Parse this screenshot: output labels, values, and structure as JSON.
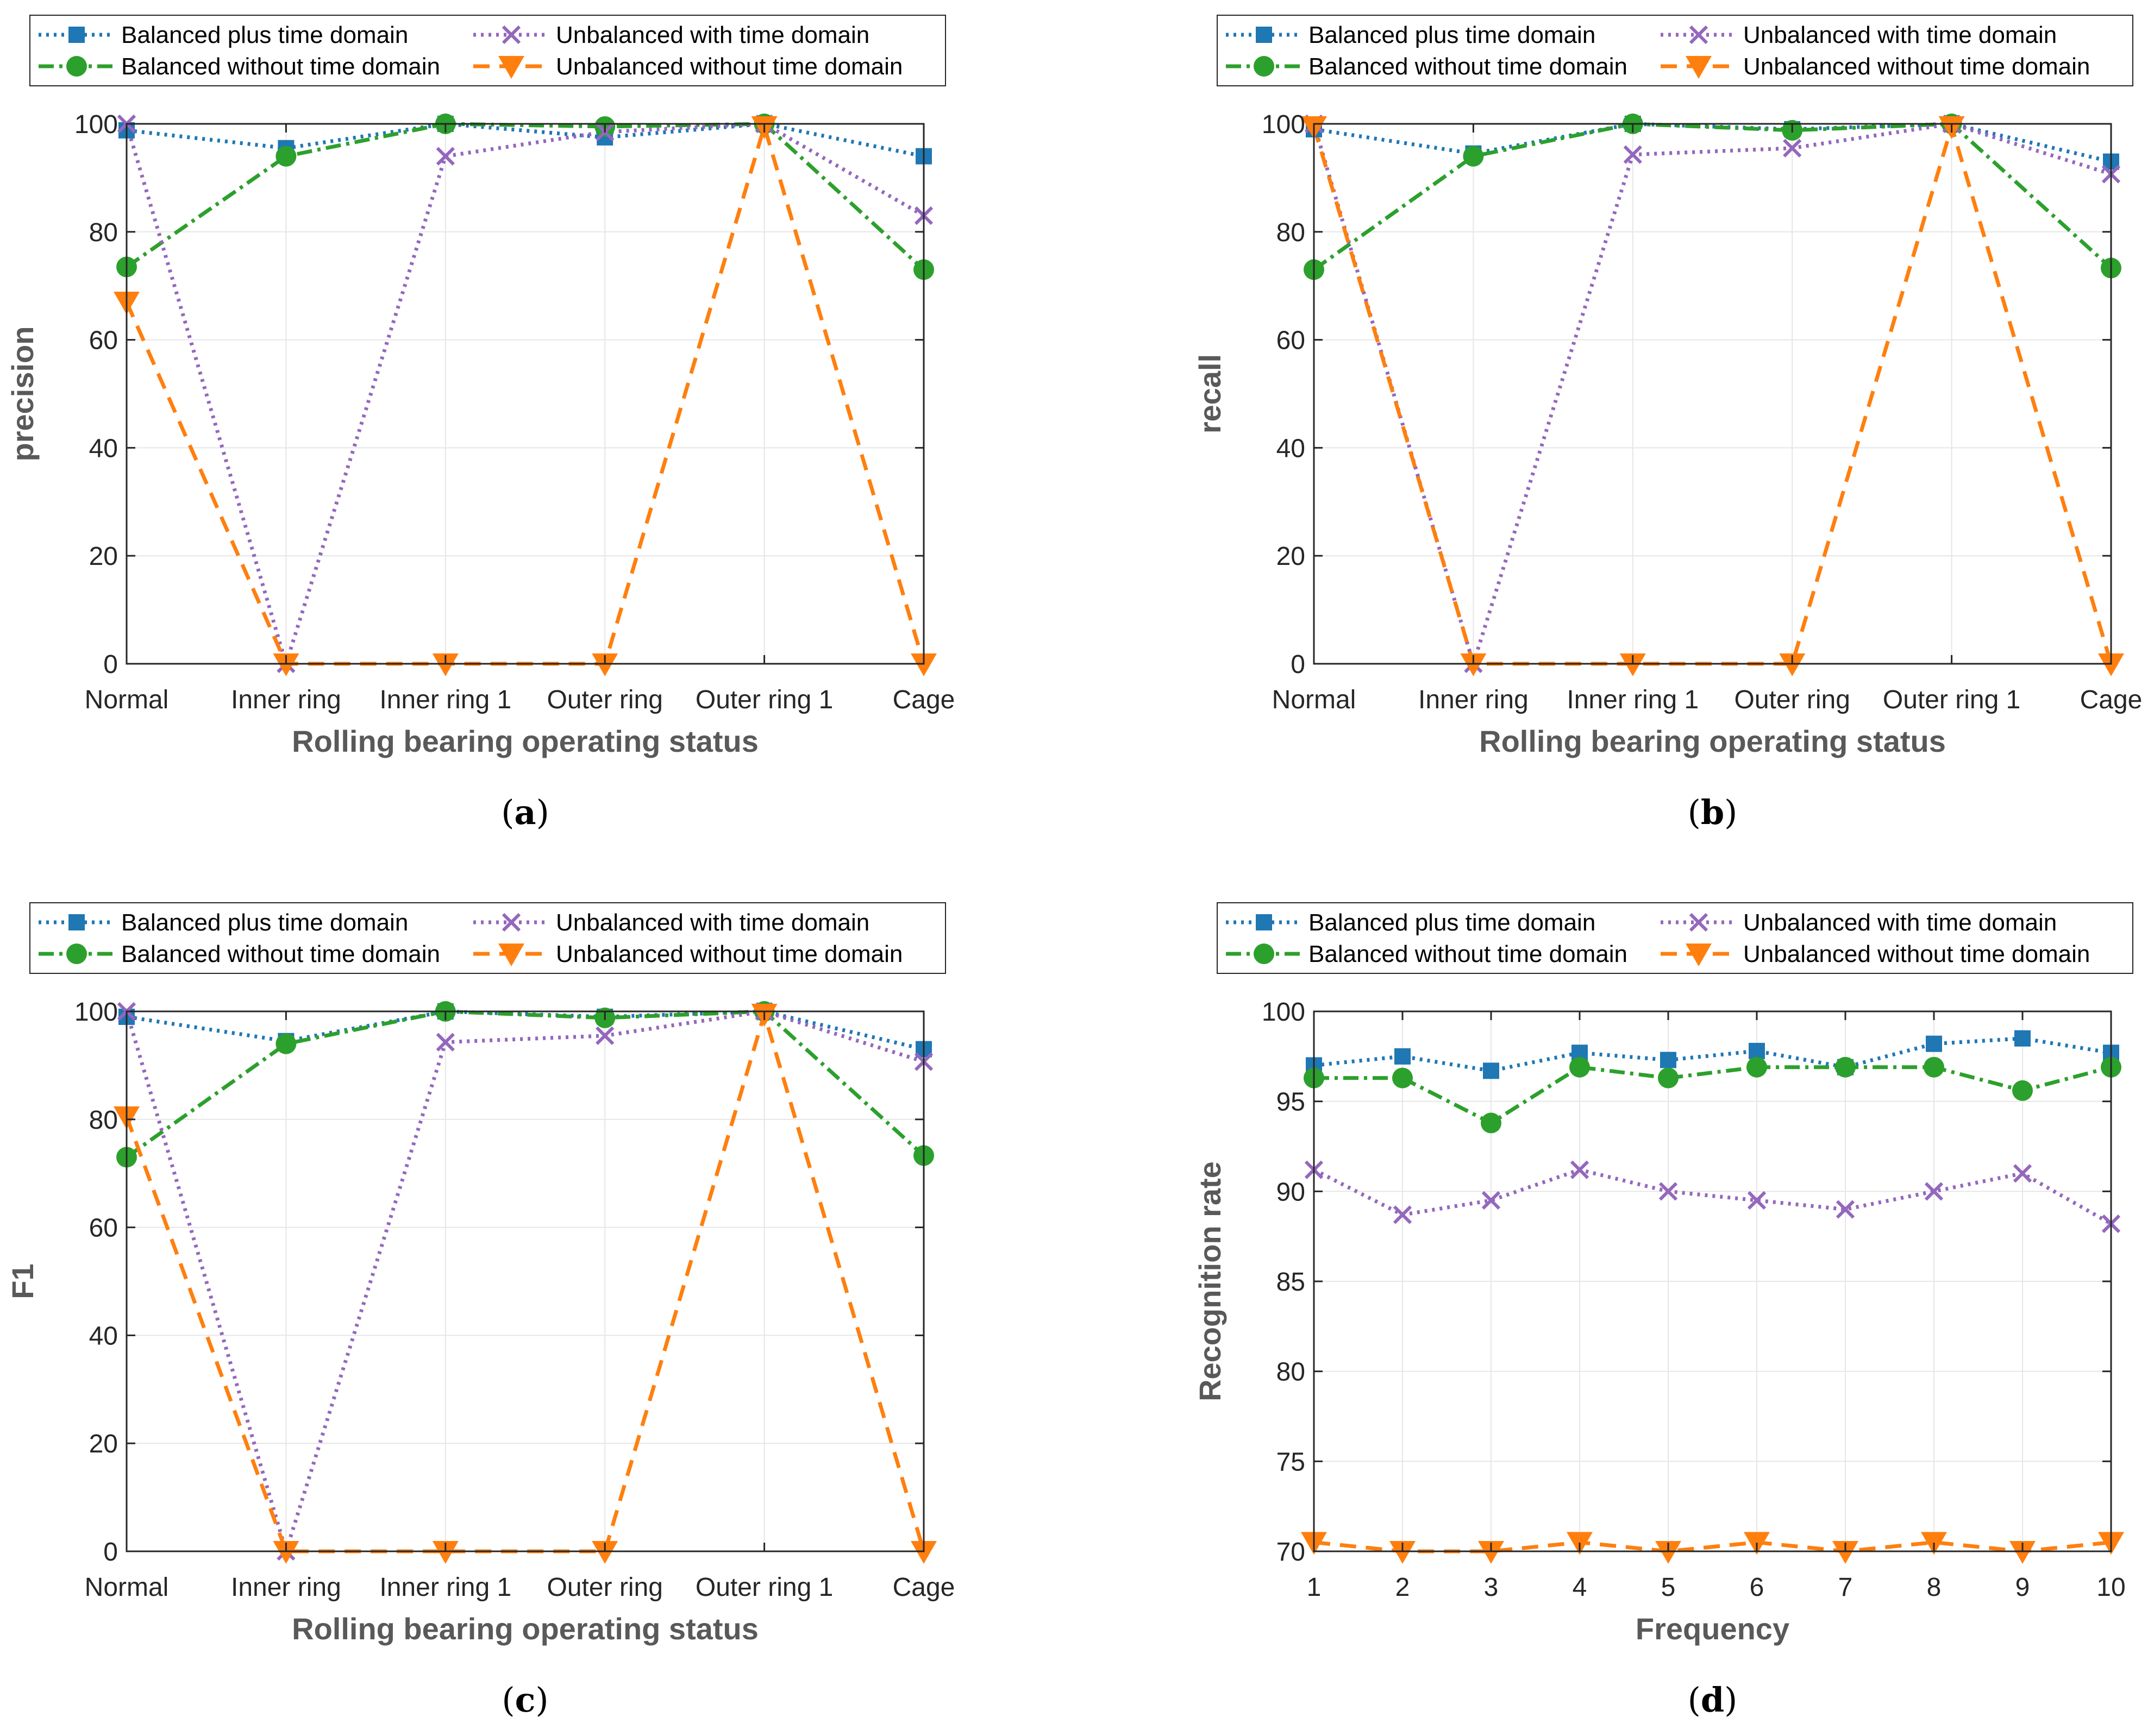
{
  "series_styles": [
    {
      "color": "#1f77b4",
      "dash": "5,9",
      "marker": "square"
    },
    {
      "color": "#2ca02c",
      "dash": "28,10,6,10",
      "marker": "circle"
    },
    {
      "color": "#9467bd",
      "dash": "5,9",
      "marker": "x"
    },
    {
      "color": "#ff7f0e",
      "dash": "30,18",
      "marker": "triangle-down"
    }
  ],
  "chart_data": [
    {
      "type": "line",
      "panel_label": "a",
      "title": "",
      "xlabel": "Rolling bearing operating status",
      "ylabel": "precision",
      "categories": [
        "Normal",
        "Inner ring",
        "Inner ring 1",
        "Outer ring",
        "Outer ring 1",
        "Cage"
      ],
      "ylim": [
        0,
        100
      ],
      "yticks": [
        0,
        20,
        40,
        60,
        80,
        100
      ],
      "grid": true,
      "legend": "top",
      "series": [
        {
          "name": "Balanced plus time domain",
          "values": [
            98.8,
            95.5,
            100,
            97.5,
            100,
            94
          ]
        },
        {
          "name": "Balanced without time domain",
          "values": [
            73.5,
            94,
            100,
            99.5,
            100,
            73
          ]
        },
        {
          "name": "Unbalanced with time domain",
          "values": [
            100,
            0,
            94,
            98.5,
            100,
            83
          ]
        },
        {
          "name": "Unbalanced without time domain",
          "values": [
            67,
            0,
            0,
            0,
            99.5,
            0
          ]
        }
      ]
    },
    {
      "type": "line",
      "panel_label": "b",
      "title": "",
      "xlabel": "Rolling bearing operating status",
      "ylabel": "recall",
      "categories": [
        "Normal",
        "Inner ring",
        "Inner ring 1",
        "Outer ring",
        "Outer ring 1",
        "Cage"
      ],
      "ylim": [
        0,
        100
      ],
      "yticks": [
        0,
        20,
        40,
        60,
        80,
        100
      ],
      "grid": true,
      "legend": "top",
      "series": [
        {
          "name": "Balanced plus time domain",
          "values": [
            99,
            94.5,
            100,
            99,
            100,
            93
          ]
        },
        {
          "name": "Balanced without time domain",
          "values": [
            73,
            94,
            100,
            98.8,
            100,
            73.3
          ]
        },
        {
          "name": "Unbalanced with time domain",
          "values": [
            100,
            0,
            94.3,
            95.5,
            100,
            90.7
          ]
        },
        {
          "name": "Unbalanced without time domain",
          "values": [
            99.5,
            0,
            0,
            0,
            99.5,
            0
          ]
        }
      ]
    },
    {
      "type": "line",
      "panel_label": "c",
      "title": "",
      "xlabel": "Rolling bearing operating status",
      "ylabel": "F1",
      "categories": [
        "Normal",
        "Inner ring",
        "Inner ring 1",
        "Outer ring",
        "Outer ring 1",
        "Cage"
      ],
      "ylim": [
        0,
        100
      ],
      "yticks": [
        0,
        20,
        40,
        60,
        80,
        100
      ],
      "grid": true,
      "legend": "top",
      "series": [
        {
          "name": "Balanced plus time domain",
          "values": [
            99,
            94.5,
            100,
            99,
            100,
            93
          ]
        },
        {
          "name": "Balanced without time domain",
          "values": [
            73,
            94,
            100,
            98.8,
            100,
            73.3
          ]
        },
        {
          "name": "Unbalanced with time domain",
          "values": [
            100,
            0,
            94.3,
            95.5,
            100,
            90.7
          ]
        },
        {
          "name": "Unbalanced without time domain",
          "values": [
            80.5,
            0,
            0,
            0,
            99.5,
            0
          ]
        }
      ]
    },
    {
      "type": "line",
      "panel_label": "d",
      "title": "",
      "xlabel": "Frequency",
      "ylabel": "Recognition rate",
      "categories": [
        "1",
        "2",
        "3",
        "4",
        "5",
        "6",
        "7",
        "8",
        "9",
        "10"
      ],
      "ylim": [
        70,
        100
      ],
      "yticks": [
        70,
        75,
        80,
        85,
        90,
        95,
        100
      ],
      "grid": true,
      "legend": "top",
      "series": [
        {
          "name": "Balanced plus time domain",
          "values": [
            97,
            97.5,
            96.7,
            97.7,
            97.3,
            97.8,
            96.9,
            98.2,
            98.5,
            97.7
          ]
        },
        {
          "name": "Balanced without time domain",
          "values": [
            96.3,
            96.3,
            93.8,
            96.9,
            96.3,
            96.9,
            96.9,
            96.9,
            95.6,
            96.9
          ]
        },
        {
          "name": "Unbalanced with time domain",
          "values": [
            91.2,
            88.7,
            89.5,
            91.2,
            90,
            89.5,
            89,
            90,
            91,
            88.2
          ]
        },
        {
          "name": "Unbalanced without time domain",
          "values": [
            70.5,
            70,
            70,
            70.5,
            70,
            70.5,
            70,
            70.5,
            70,
            70.5
          ]
        }
      ]
    }
  ]
}
